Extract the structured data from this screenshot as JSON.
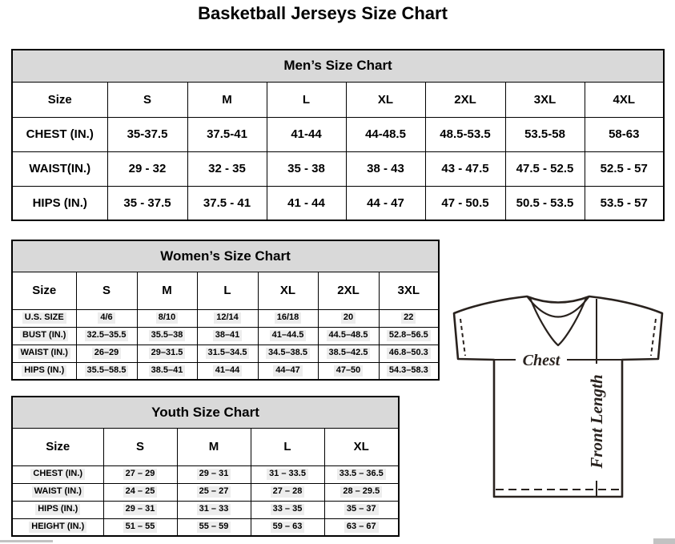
{
  "page_title": "Basketball Jerseys Size Chart",
  "tables": {
    "mens": {
      "title": "Men’s Size Chart",
      "columns": [
        "Size",
        "S",
        "M",
        "L",
        "XL",
        "2XL",
        "3XL",
        "4XL"
      ],
      "rows": [
        {
          "label": "CHEST (IN.)",
          "values": [
            "35-37.5",
            "37.5-41",
            "41-44",
            "44-48.5",
            "48.5-53.5",
            "53.5-58",
            "58-63"
          ]
        },
        {
          "label": "WAIST(IN.)",
          "values": [
            "29 - 32",
            "32 - 35",
            "35 - 38",
            "38 - 43",
            "43 - 47.5",
            "47.5 - 52.5",
            "52.5 - 57"
          ]
        },
        {
          "label": "HIPS (IN.)",
          "values": [
            "35 - 37.5",
            "37.5 - 41",
            "41 - 44",
            "44 - 47",
            "47 - 50.5",
            "50.5 - 53.5",
            "53.5 - 57"
          ]
        }
      ]
    },
    "womens": {
      "title": "Women’s Size Chart",
      "columns": [
        "Size",
        "S",
        "M",
        "L",
        "XL",
        "2XL",
        "3XL"
      ],
      "rows": [
        {
          "label": "U.S. SIZE",
          "values": [
            "4/6",
            "8/10",
            "12/14",
            "16/18",
            "20",
            "22"
          ]
        },
        {
          "label": "BUST (IN.)",
          "values": [
            "32.5–35.5",
            "35.5–38",
            "38–41",
            "41–44.5",
            "44.5–48.5",
            "52.8–56.5"
          ]
        },
        {
          "label": "WAIST (IN.)",
          "values": [
            "26–29",
            "29–31.5",
            "31.5–34.5",
            "34.5–38.5",
            "38.5–42.5",
            "46.8–50.3"
          ]
        },
        {
          "label": "HIPS (IN.)",
          "values": [
            "35.5–58.5",
            "38.5–41",
            "41–44",
            "44–47",
            "47–50",
            "54.3–58.3"
          ]
        }
      ]
    },
    "youth": {
      "title": "Youth Size Chart",
      "columns": [
        "Size",
        "S",
        "M",
        "L",
        "XL"
      ],
      "rows": [
        {
          "label": "CHEST (IN.)",
          "values": [
            "27 – 29",
            "29 – 31",
            "31 – 33.5",
            "33.5 – 36.5"
          ]
        },
        {
          "label": "WAIST (IN.)",
          "values": [
            "24 – 25",
            "25 – 27",
            "27 – 28",
            "28 – 29.5"
          ]
        },
        {
          "label": "HIPS (IN.)",
          "values": [
            "29 – 31",
            "31 – 33",
            "33 – 35",
            "35 – 37"
          ]
        },
        {
          "label": "HEIGHT (IN.)",
          "values": [
            "51 – 55",
            "55 – 59",
            "59 – 63",
            "63 – 67"
          ]
        }
      ]
    }
  },
  "diagram": {
    "chest_label": "Chest",
    "front_length_label": "Front Length"
  },
  "colors": {
    "table_band_bg": "#d9d9d9",
    "table_border": "#000000",
    "diagram_line": "#29221e",
    "value_highlight": "#ededed",
    "scrollbar": "#c2c2c2"
  }
}
